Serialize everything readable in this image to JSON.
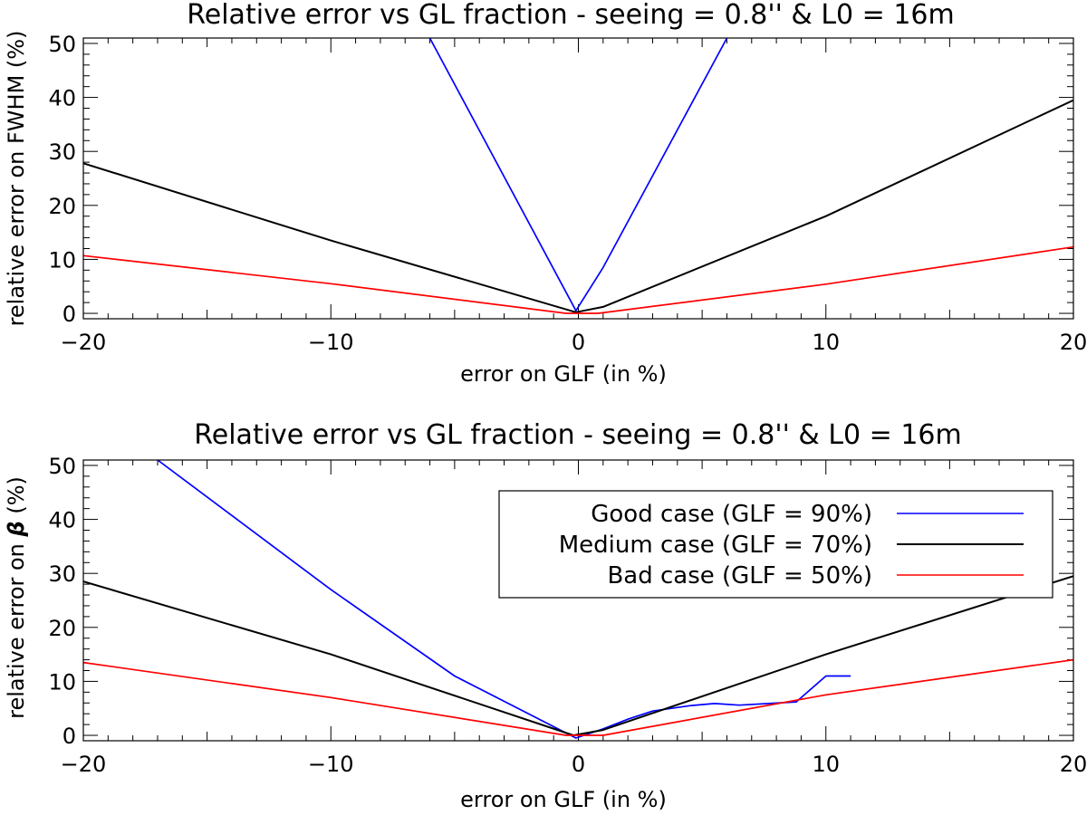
{
  "chart_data": [
    {
      "type": "line",
      "title": "Relative error vs GL fraction - seeing = 0.8'' & L0 = 16m",
      "xlabel": "error on GLF (in %)",
      "ylabel": "relative error on FWHM (%)",
      "xlim": [
        -20,
        20
      ],
      "ylim": [
        -1,
        51
      ],
      "xticks": [
        -20,
        -10,
        0,
        10,
        20
      ],
      "xtick_labels": [
        "-20",
        "-10",
        "0",
        "10",
        "20"
      ],
      "yticks": [
        0,
        10,
        20,
        30,
        40,
        50
      ],
      "ytick_labels": [
        "0",
        "10",
        "20",
        "30",
        "40",
        "50"
      ],
      "series": [
        {
          "color": "#0000ff",
          "x": [
            -6,
            -0.1,
            1,
            6
          ],
          "y": [
            51,
            0.5,
            8.5,
            51
          ]
        },
        {
          "color": "#000000",
          "x": [
            -20,
            -10,
            -0.1,
            1,
            10,
            20
          ],
          "y": [
            27.8,
            13.5,
            0.2,
            1.2,
            18,
            39.5
          ]
        },
        {
          "color": "#ff0000",
          "x": [
            -20,
            -10,
            -0.5,
            0.8,
            10,
            20
          ],
          "y": [
            10.7,
            5.5,
            0,
            0,
            5.4,
            12.3
          ]
        }
      ]
    },
    {
      "type": "line",
      "title": "Relative error vs GL fraction - seeing = 0.8'' & L0 = 16m",
      "xlabel": "error on GLF (in %)",
      "ylabel_prefix": "relative error on ",
      "ylabel_symbol": "β",
      "ylabel_suffix": " (%)",
      "xlim": [
        -20,
        20
      ],
      "ylim": [
        -1,
        51
      ],
      "xticks": [
        -20,
        -10,
        0,
        10,
        20
      ],
      "xtick_labels": [
        "-20",
        "-10",
        "0",
        "10",
        "20"
      ],
      "yticks": [
        0,
        10,
        20,
        30,
        40,
        50
      ],
      "ytick_labels": [
        "0",
        "10",
        "20",
        "30",
        "40",
        "50"
      ],
      "series": [
        {
          "name": "Good case (GLF = 90%)",
          "color": "#0000ff",
          "x": [
            -17,
            -10,
            -5,
            -0.1,
            1,
            2,
            3,
            4.5,
            5.5,
            6.5,
            8.8,
            10,
            11
          ],
          "y": [
            51,
            27,
            11,
            -0.5,
            1.2,
            3,
            4.5,
            5.5,
            5.9,
            5.6,
            6.2,
            11,
            11
          ]
        },
        {
          "name": "Medium case (GLF = 70%)",
          "color": "#000000",
          "x": [
            -20,
            -10,
            -0.2,
            1,
            10,
            20
          ],
          "y": [
            28.5,
            15,
            0,
            1,
            15,
            29.5
          ]
        },
        {
          "name": "Bad case (GLF = 50%)",
          "color": "#ff0000",
          "x": [
            -20,
            -10,
            -0.5,
            1,
            10,
            20
          ],
          "y": [
            13.5,
            7,
            0,
            0,
            7.5,
            14
          ]
        }
      ],
      "legend_position": "top-right"
    }
  ]
}
